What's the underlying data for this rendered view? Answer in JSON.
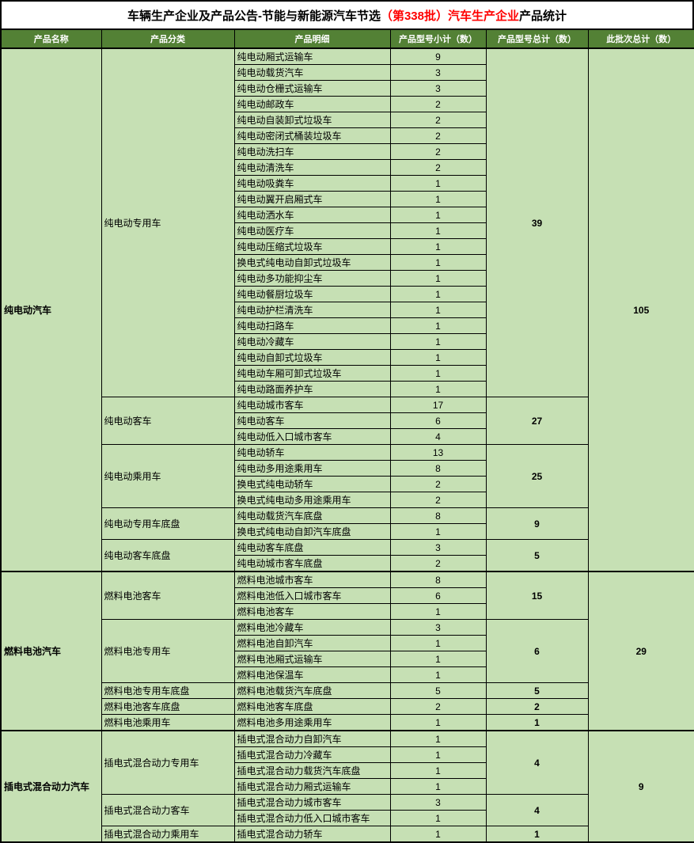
{
  "title": {
    "part1": "车辆生产企业及产品公告-节能与新能源汽车节选",
    "part2": "（第338批）汽车生产企业",
    "part3": "产品统计"
  },
  "colors": {
    "header_bg": "#538135",
    "header_text": "#ffffff",
    "cell_bg": "#c6e0b4",
    "title_highlight": "#ff0000",
    "border": "#000000"
  },
  "table": {
    "headers": [
      "产品名称",
      "产品分类",
      "产品明细",
      "产品型号小计（数）",
      "产品型号总计（数）",
      "此批次总计（数）"
    ],
    "sections": [
      {
        "name": "纯电动汽车",
        "batch_total": 105,
        "categories": [
          {
            "name": "纯电动专用车",
            "model_total": 39,
            "items": [
              {
                "detail": "纯电动厢式运输车",
                "subtotal": 9
              },
              {
                "detail": "纯电动载货汽车",
                "subtotal": 3
              },
              {
                "detail": "纯电动仓栅式运输车",
                "subtotal": 3
              },
              {
                "detail": "纯电动邮政车",
                "subtotal": 2
              },
              {
                "detail": "纯电动自装卸式垃圾车",
                "subtotal": 2
              },
              {
                "detail": "纯电动密闭式桶装垃圾车",
                "subtotal": 2
              },
              {
                "detail": "纯电动洗扫车",
                "subtotal": 2
              },
              {
                "detail": "纯电动清洗车",
                "subtotal": 2
              },
              {
                "detail": "纯电动吸粪车",
                "subtotal": 1
              },
              {
                "detail": "纯电动翼开启厢式车",
                "subtotal": 1
              },
              {
                "detail": "纯电动洒水车",
                "subtotal": 1
              },
              {
                "detail": "纯电动医疗车",
                "subtotal": 1
              },
              {
                "detail": "纯电动压缩式垃圾车",
                "subtotal": 1
              },
              {
                "detail": "换电式纯电动自卸式垃圾车",
                "subtotal": 1
              },
              {
                "detail": "纯电动多功能抑尘车",
                "subtotal": 1
              },
              {
                "detail": "纯电动餐厨垃圾车",
                "subtotal": 1
              },
              {
                "detail": "纯电动护栏清洗车",
                "subtotal": 1
              },
              {
                "detail": "纯电动扫路车",
                "subtotal": 1
              },
              {
                "detail": "纯电动冷藏车",
                "subtotal": 1
              },
              {
                "detail": "纯电动自卸式垃圾车",
                "subtotal": 1
              },
              {
                "detail": "纯电动车厢可卸式垃圾车",
                "subtotal": 1
              },
              {
                "detail": "纯电动路面养护车",
                "subtotal": 1
              }
            ]
          },
          {
            "name": "纯电动客车",
            "model_total": 27,
            "items": [
              {
                "detail": "纯电动城市客车",
                "subtotal": 17
              },
              {
                "detail": "纯电动客车",
                "subtotal": 6
              },
              {
                "detail": "纯电动低入口城市客车",
                "subtotal": 4
              }
            ]
          },
          {
            "name": "纯电动乘用车",
            "model_total": 25,
            "items": [
              {
                "detail": "纯电动轿车",
                "subtotal": 13
              },
              {
                "detail": "纯电动多用途乘用车",
                "subtotal": 8
              },
              {
                "detail": "换电式纯电动轿车",
                "subtotal": 2
              },
              {
                "detail": "换电式纯电动多用途乘用车",
                "subtotal": 2
              }
            ]
          },
          {
            "name": "纯电动专用车底盘",
            "model_total": 9,
            "items": [
              {
                "detail": "纯电动载货汽车底盘",
                "subtotal": 8
              },
              {
                "detail": "换电式纯电动自卸汽车底盘",
                "subtotal": 1
              }
            ]
          },
          {
            "name": "纯电动客车底盘",
            "model_total": 5,
            "items": [
              {
                "detail": "纯电动客车底盘",
                "subtotal": 3
              },
              {
                "detail": "纯电动城市客车底盘",
                "subtotal": 2
              }
            ]
          }
        ]
      },
      {
        "name": "燃料电池汽车",
        "batch_total": 29,
        "categories": [
          {
            "name": "燃料电池客车",
            "model_total": 15,
            "items": [
              {
                "detail": "燃料电池城市客车",
                "subtotal": 8
              },
              {
                "detail": "燃料电池低入口城市客车",
                "subtotal": 6
              },
              {
                "detail": "燃料电池客车",
                "subtotal": 1
              }
            ]
          },
          {
            "name": "燃料电池专用车",
            "model_total": 6,
            "items": [
              {
                "detail": "燃料电池冷藏车",
                "subtotal": 3
              },
              {
                "detail": "燃料电池自卸汽车",
                "subtotal": 1
              },
              {
                "detail": "燃料电池厢式运输车",
                "subtotal": 1
              },
              {
                "detail": "燃料电池保温车",
                "subtotal": 1
              }
            ]
          },
          {
            "name": "燃料电池专用车底盘",
            "model_total": 5,
            "items": [
              {
                "detail": "燃料电池载货汽车底盘",
                "subtotal": 5
              }
            ]
          },
          {
            "name": "燃料电池客车底盘",
            "model_total": 2,
            "items": [
              {
                "detail": "燃料电池客车底盘",
                "subtotal": 2
              }
            ]
          },
          {
            "name": "燃料电池乘用车",
            "model_total": 1,
            "items": [
              {
                "detail": "燃料电池多用途乘用车",
                "subtotal": 1
              }
            ]
          }
        ]
      },
      {
        "name": "插电式混合动力汽车",
        "batch_total": 9,
        "categories": [
          {
            "name": "插电式混合动力专用车",
            "model_total": 4,
            "items": [
              {
                "detail": "插电式混合动力自卸汽车",
                "subtotal": 1
              },
              {
                "detail": "插电式混合动力冷藏车",
                "subtotal": 1
              },
              {
                "detail": "插电式混合动力载货汽车底盘",
                "subtotal": 1
              },
              {
                "detail": "插电式混合动力厢式运输车",
                "subtotal": 1
              }
            ]
          },
          {
            "name": "插电式混合动力客车",
            "model_total": 4,
            "items": [
              {
                "detail": "插电式混合动力城市客车",
                "subtotal": 3
              },
              {
                "detail": "插电式混合动力低入口城市客车",
                "subtotal": 1
              }
            ]
          },
          {
            "name": "插电式混合动力乘用车",
            "model_total": 1,
            "items": [
              {
                "detail": "插电式混合动力轿车",
                "subtotal": 1
              }
            ]
          }
        ]
      }
    ]
  }
}
